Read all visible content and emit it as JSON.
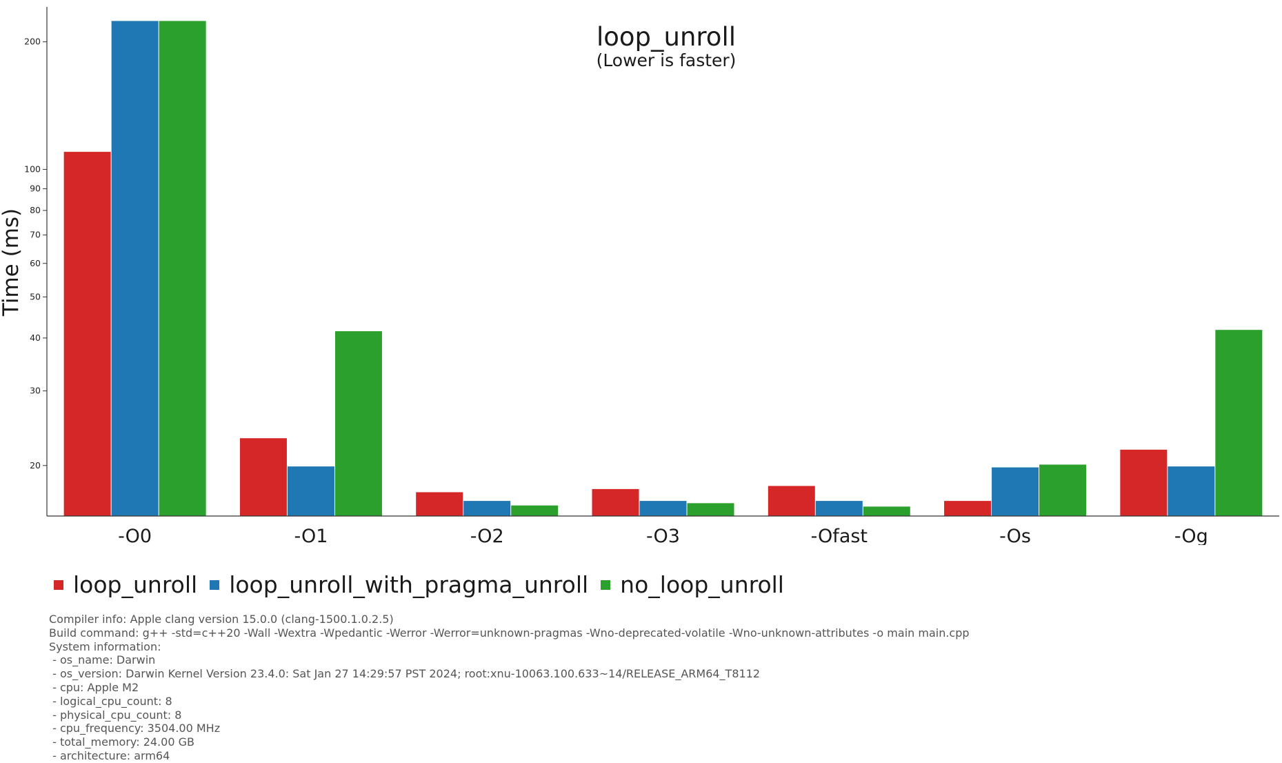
{
  "chart_data": {
    "type": "bar",
    "title": "loop_unroll",
    "subtitle": "(Lower is faster)",
    "ylabel": "Time (ms)",
    "xlabel": "",
    "yscale": "log",
    "ylim": [
      15.2,
      240
    ],
    "yticks": [
      20,
      30,
      40,
      50,
      60,
      70,
      80,
      90,
      100,
      200
    ],
    "categories": [
      "-O0",
      "-O1",
      "-O2",
      "-O3",
      "-Ofast",
      "-Os",
      "-Og"
    ],
    "series": [
      {
        "name": "loop_unroll",
        "color": "#d62728",
        "values": [
          110.0,
          23.2,
          17.3,
          17.6,
          17.9,
          16.5,
          21.8
        ]
      },
      {
        "name": "loop_unroll_with_pragma_unroll",
        "color": "#1f77b4",
        "values": [
          224.0,
          19.9,
          16.5,
          16.5,
          16.5,
          19.8,
          19.9
        ]
      },
      {
        "name": "no_loop_unroll",
        "color": "#2ca02c",
        "values": [
          224.0,
          41.5,
          16.1,
          16.3,
          16.0,
          20.1,
          41.8
        ]
      }
    ],
    "legend_position": "bottom-left",
    "grid": false
  },
  "system_info": [
    "Compiler info: Apple clang version 15.0.0 (clang-1500.1.0.2.5)",
    "Build command: g++ -std=c++20 -Wall -Wextra -Wpedantic -Werror -Werror=unknown-pragmas -Wno-deprecated-volatile -Wno-unknown-attributes -o main main.cpp",
    "System information:",
    " - os_name: Darwin",
    " - os_version: Darwin Kernel Version 23.4.0: Sat Jan 27 14:29:57 PST 2024; root:xnu-10063.100.633~14/RELEASE_ARM64_T8112",
    " - cpu: Apple M2",
    " - logical_cpu_count: 8",
    " - physical_cpu_count: 8",
    " - cpu_frequency: 3504.00 MHz",
    " - total_memory: 24.00 GB",
    " - architecture: arm64"
  ]
}
